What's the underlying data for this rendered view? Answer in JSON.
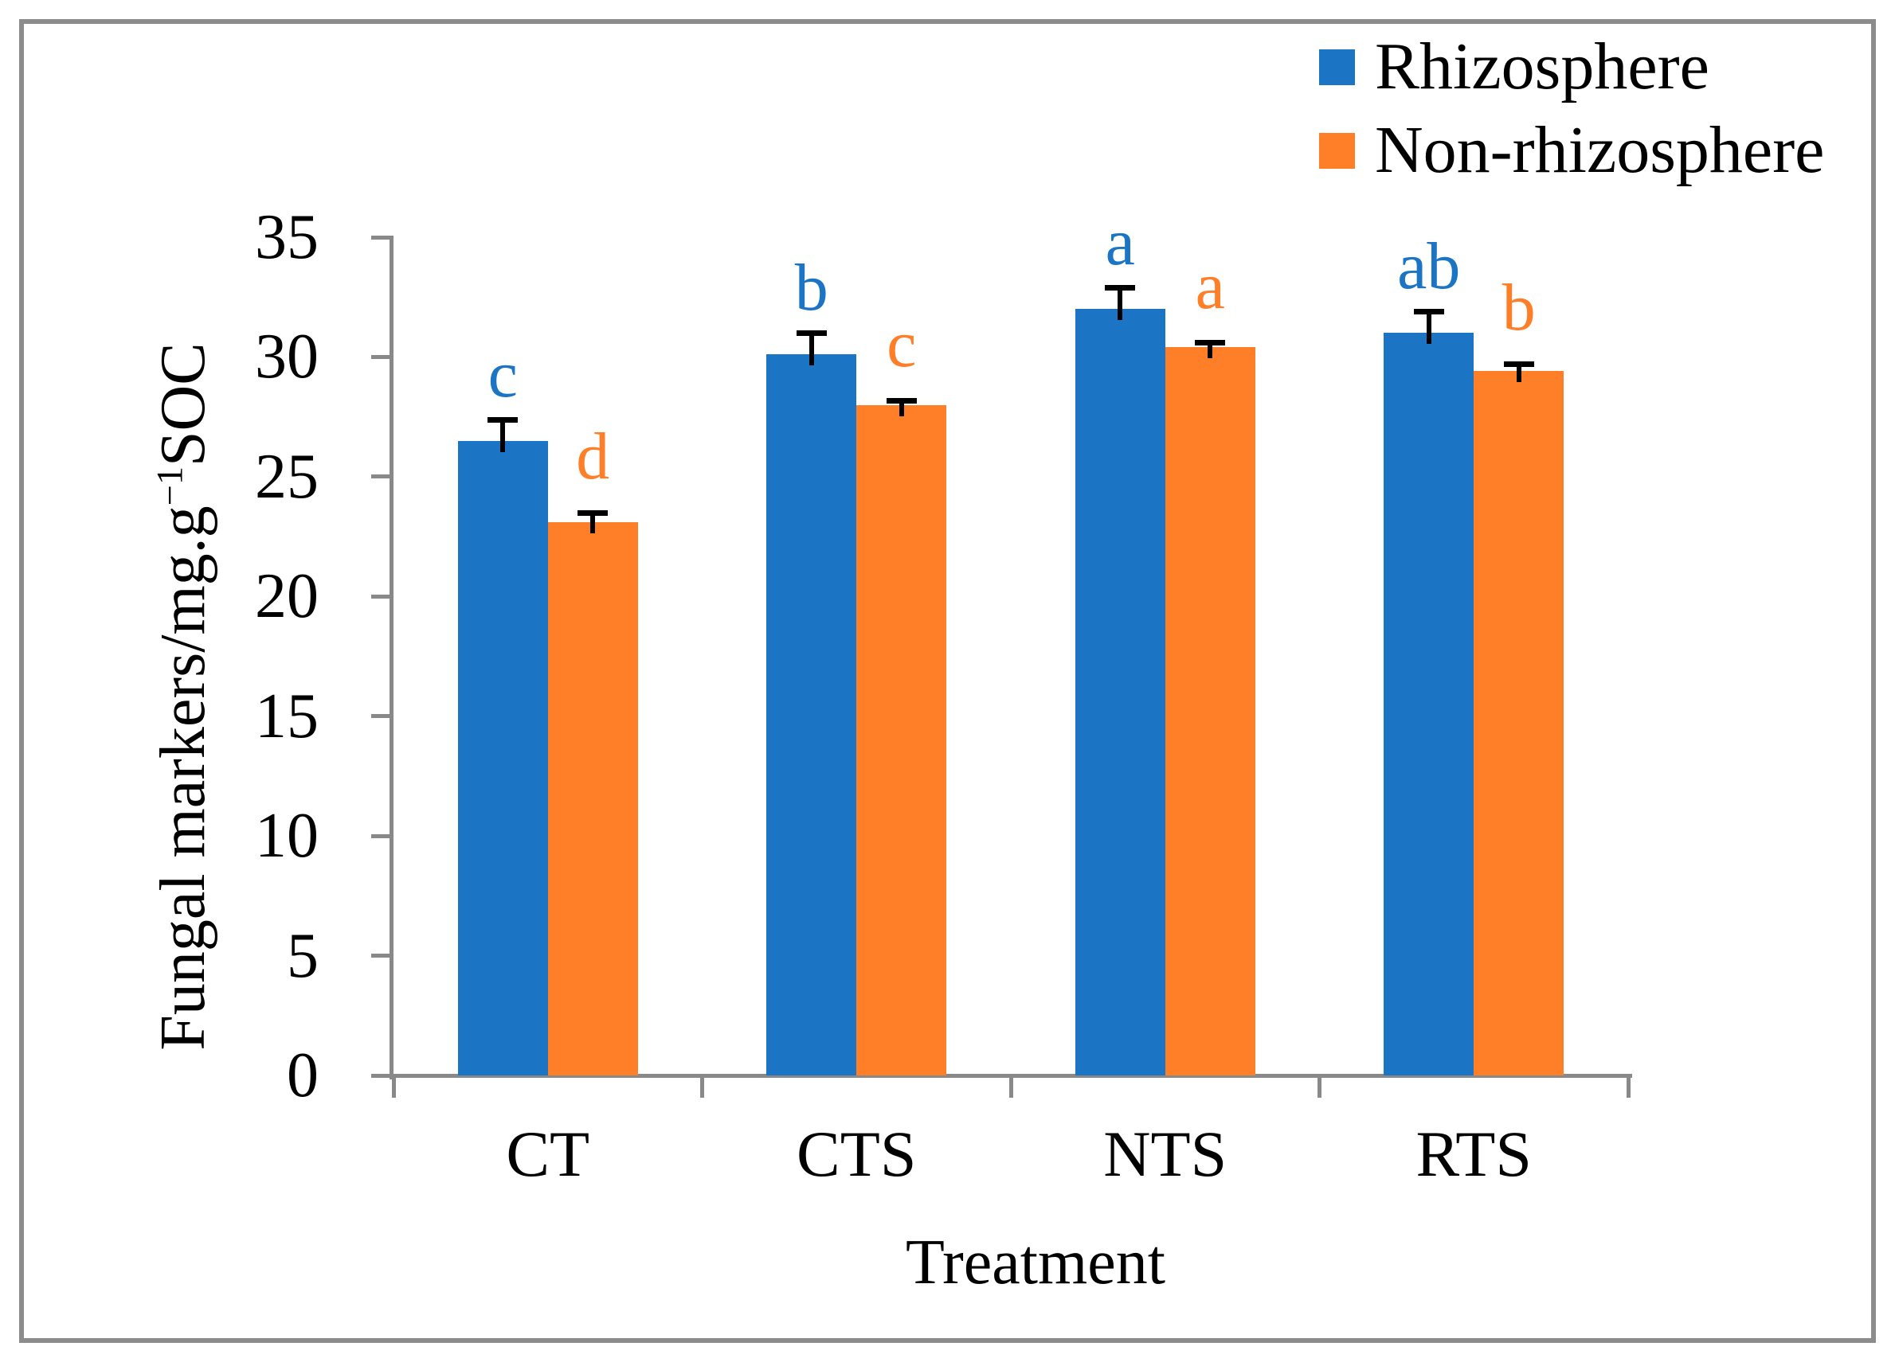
{
  "figure": {
    "background": "#ffffff",
    "border_color": "#8C8C8C"
  },
  "legend": {
    "position": "top-right",
    "items": [
      {
        "label": "Rhizosphere",
        "color": "#1B74C4"
      },
      {
        "label": "Non-rhizosphere",
        "color": "#FF7E28"
      }
    ]
  },
  "chart_data": {
    "type": "bar",
    "title": "",
    "categories": [
      "CT",
      "CTS",
      "NTS",
      "RTS"
    ],
    "series": [
      {
        "name": "Rhizosphere",
        "color": "#1B74C4",
        "values": [
          26.5,
          30.1,
          32.0,
          31.0
        ],
        "errors_plus": [
          1.0,
          1.0,
          1.0,
          1.0
        ],
        "letters": [
          "c",
          "b",
          "a",
          "ab"
        ]
      },
      {
        "name": "Non-rhizosphere",
        "color": "#FF7E28",
        "values": [
          23.1,
          28.0,
          30.4,
          29.4
        ],
        "errors_plus": [
          0.5,
          0.3,
          0.3,
          0.4
        ],
        "letters": [
          "d",
          "c",
          "a",
          "b"
        ]
      }
    ],
    "xlabel": "Treatment",
    "ylabel": "Fungal markers/mg.g⁻¹SOC",
    "ylabel_parts": {
      "prefix": "Fungal markers/mg.g",
      "sup": "−1",
      "suffix": "SOC"
    },
    "ylim": [
      0,
      35
    ],
    "yticks": [
      0,
      5,
      10,
      15,
      20,
      25,
      30,
      35
    ],
    "grid": false,
    "legend_position": "top-right",
    "error_bar_color": "#000000",
    "axis_color": "#898989",
    "letter_colors_match_series": true
  }
}
